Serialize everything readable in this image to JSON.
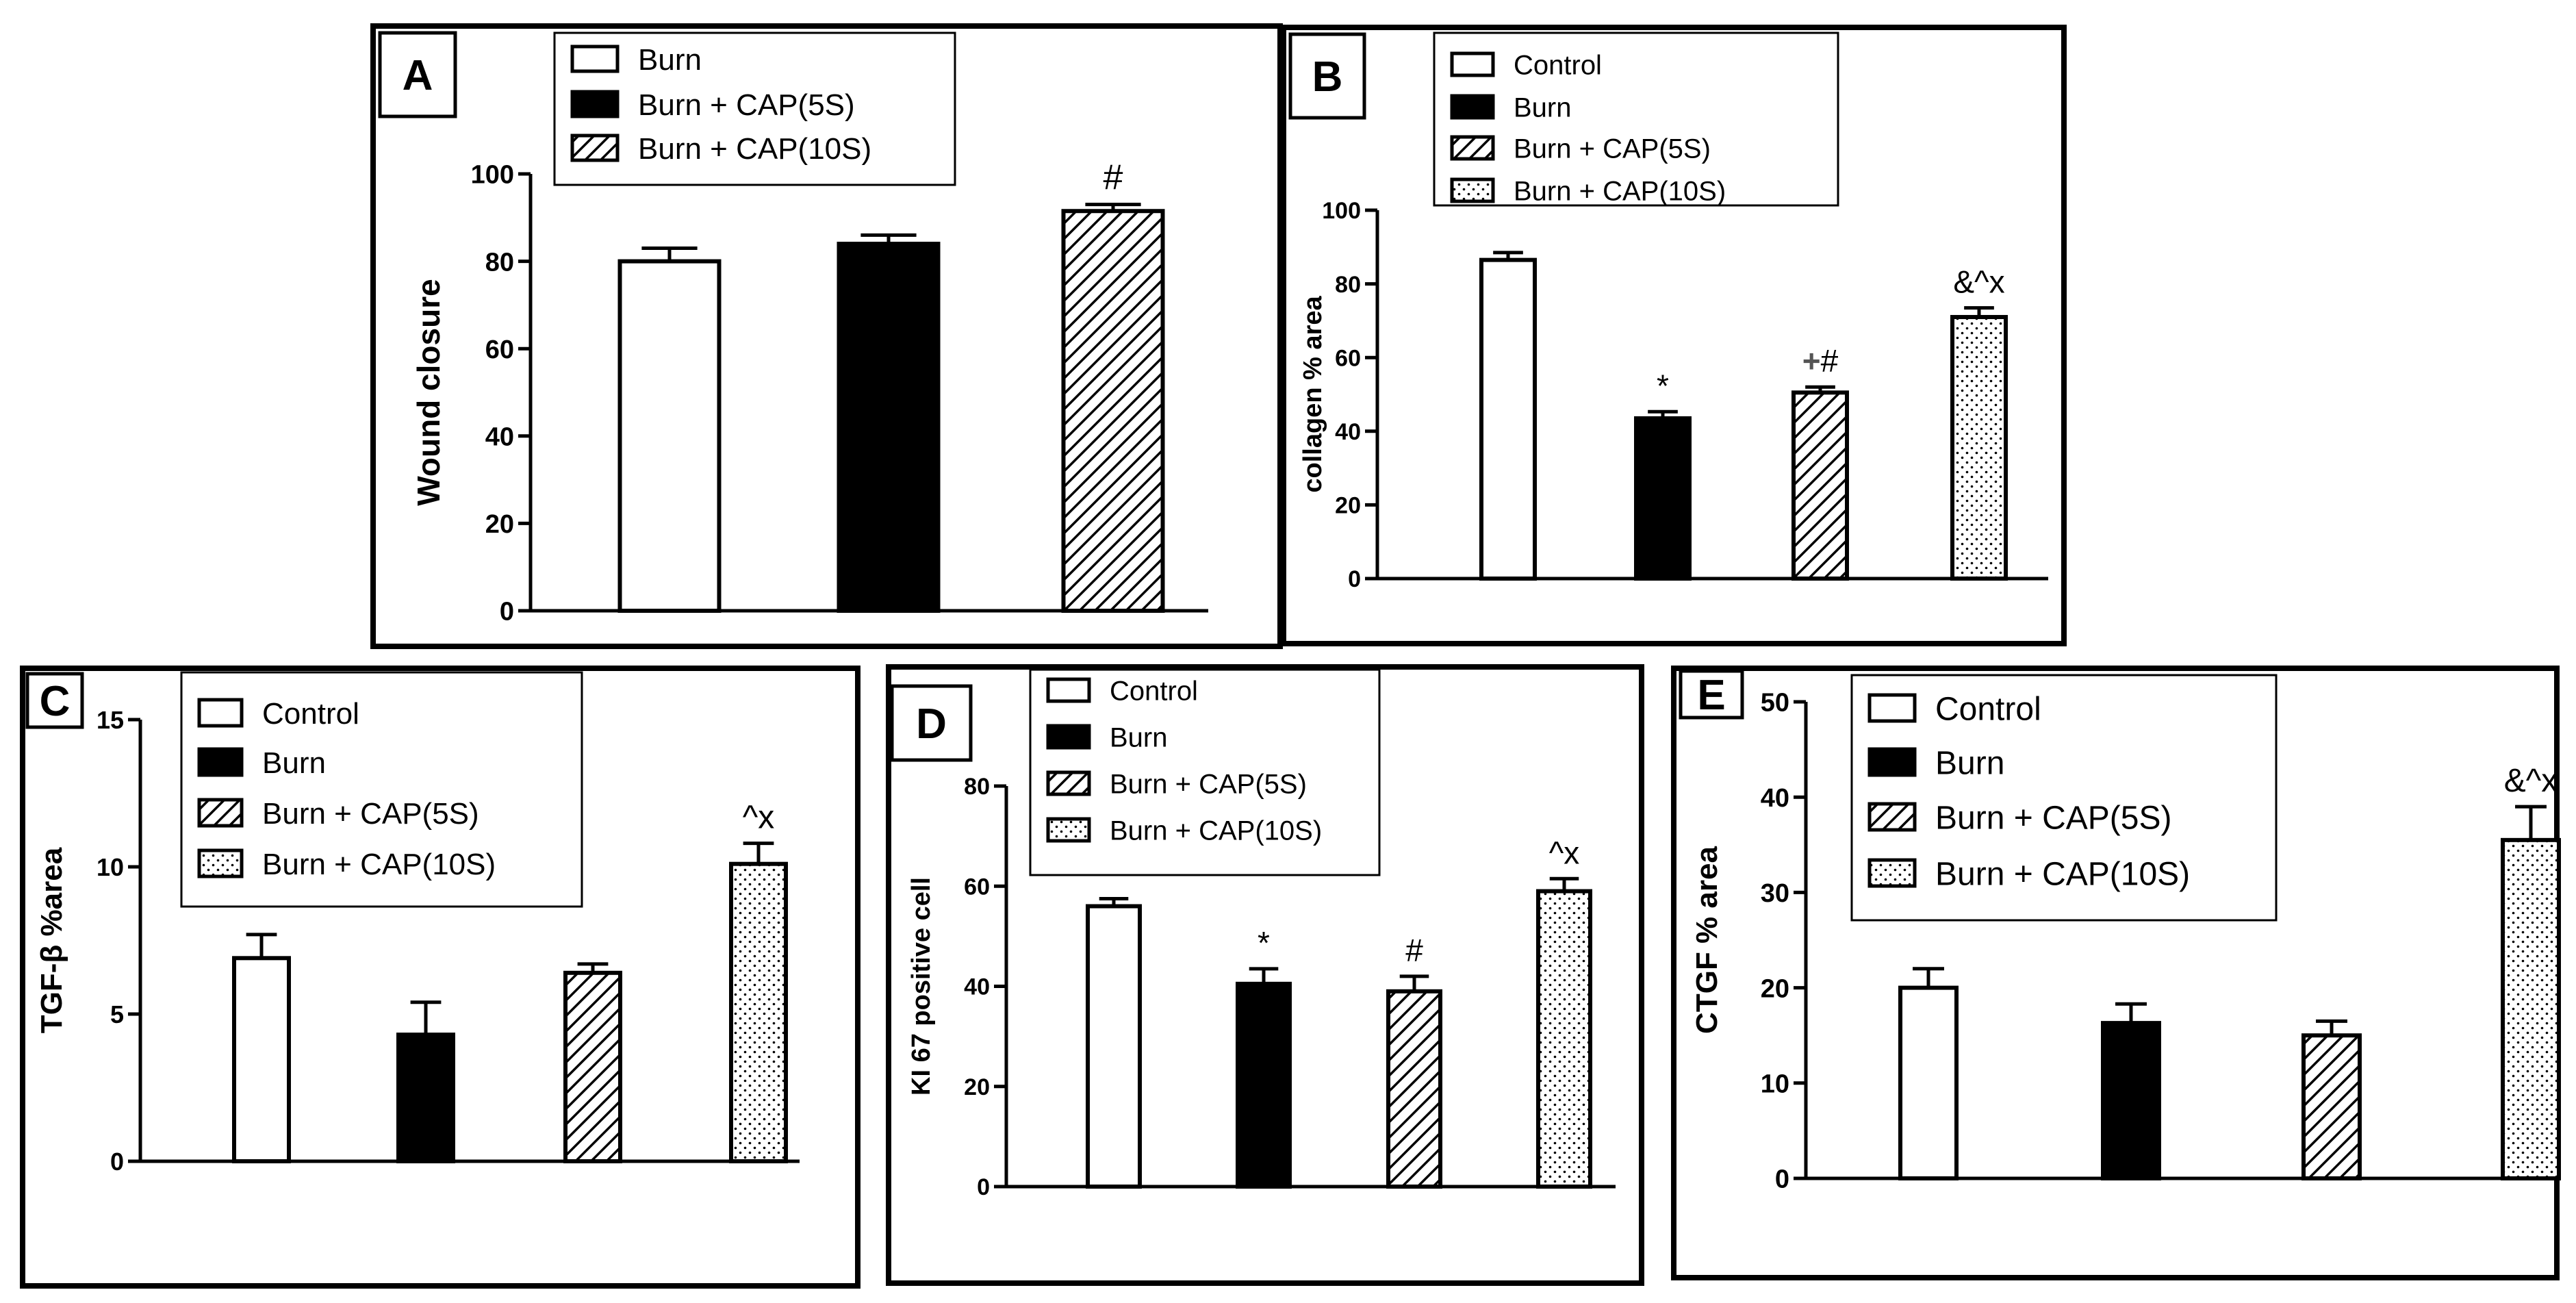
{
  "chart_data": [
    {
      "type": "bar",
      "panel": "A",
      "ylabel": "Wound closure",
      "ylim": [
        0,
        100
      ],
      "yticks": [
        0,
        20,
        40,
        60,
        80,
        100
      ],
      "legend": "top-center",
      "categories": [
        "Burn",
        "Burn + CAP(5S)",
        "Burn + CAP(10S)"
      ],
      "patterns": [
        "white",
        "black",
        "hatch"
      ],
      "values": [
        80,
        84,
        91.5
      ],
      "errors": [
        3,
        2,
        1.5
      ],
      "annotations": [
        "",
        "",
        "#"
      ]
    },
    {
      "type": "bar",
      "panel": "B",
      "ylabel": "collagen % area",
      "ylim": [
        0,
        100
      ],
      "yticks": [
        0,
        20,
        40,
        60,
        80,
        100
      ],
      "legend": "top-center",
      "categories": [
        "Control",
        "Burn",
        "Burn + CAP(5S)",
        "Burn + CAP(10S)"
      ],
      "patterns": [
        "white",
        "black",
        "hatch",
        "dots"
      ],
      "values": [
        86.5,
        43.5,
        50.5,
        71
      ],
      "errors": [
        2,
        1.8,
        1.5,
        2.5
      ],
      "annotations": [
        "",
        "*",
        "+#",
        "&^x"
      ]
    },
    {
      "type": "bar",
      "panel": "C",
      "ylabel": "TGF-β %area",
      "ylim": [
        0,
        15
      ],
      "yticks": [
        0,
        5,
        10,
        15
      ],
      "legend": "top-center",
      "categories": [
        "Control",
        "Burn",
        "Burn + CAP(5S)",
        "Burn + CAP(10S)"
      ],
      "patterns": [
        "white",
        "black",
        "hatch",
        "dots"
      ],
      "values": [
        6.9,
        4.3,
        6.4,
        10.1
      ],
      "errors": [
        0.8,
        1.1,
        0.3,
        0.7
      ],
      "annotations": [
        "",
        "",
        "",
        "^x"
      ]
    },
    {
      "type": "bar",
      "panel": "D",
      "ylabel": "KI 67 positive cell",
      "ylim": [
        0,
        80
      ],
      "yticks": [
        0,
        20,
        40,
        60,
        80
      ],
      "legend": "top-center",
      "categories": [
        "Control",
        "Burn",
        "Burn + CAP(5S)",
        "Burn + CAP(10S)"
      ],
      "patterns": [
        "white",
        "black",
        "hatch",
        "dots"
      ],
      "values": [
        56,
        40.5,
        39,
        59
      ],
      "errors": [
        1.5,
        3,
        3,
        2.5
      ],
      "annotations": [
        "",
        "*",
        "#",
        "^x"
      ]
    },
    {
      "type": "bar",
      "panel": "E",
      "ylabel": "CTGF % area",
      "ylim": [
        0,
        50
      ],
      "yticks": [
        0,
        10,
        20,
        30,
        40,
        50
      ],
      "legend": "top-center",
      "categories": [
        "Control",
        "Burn",
        "Burn + CAP(5S)",
        "Burn + CAP(10S)"
      ],
      "patterns": [
        "white",
        "black",
        "hatch",
        "dots"
      ],
      "values": [
        20,
        16.3,
        15,
        35.5
      ],
      "errors": [
        2,
        2,
        1.5,
        3.5
      ],
      "annotations": [
        "",
        "",
        "",
        "&^x"
      ]
    }
  ]
}
